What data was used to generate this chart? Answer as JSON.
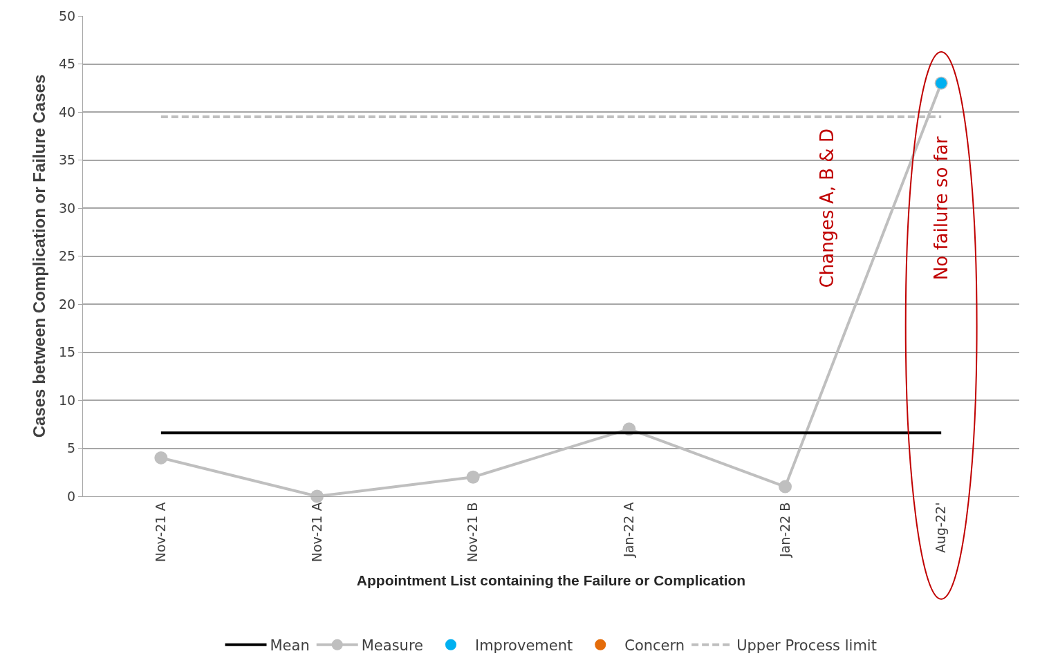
{
  "chart_data": {
    "type": "line",
    "xlabel": "Appointment List containing the Failure or Complication",
    "ylabel": "Cases between Complication or Failure Cases",
    "categories": [
      "Nov-21 A",
      "Nov-21 A",
      "Nov-21 B",
      "Jan-22 A",
      "Jan-22 B",
      "Aug-22'"
    ],
    "series": [
      {
        "name": "Mean",
        "color": "#000000",
        "marker": "none",
        "line_style": "solid",
        "values": [
          6.6,
          6.6,
          6.6,
          6.6,
          6.6,
          6.6
        ]
      },
      {
        "name": "Measure",
        "color": "#bfbfbf",
        "marker": "circle",
        "line_style": "solid",
        "values": [
          4,
          0,
          2,
          7,
          1,
          43
        ]
      },
      {
        "name": "Improvement",
        "type": "scatter",
        "color": "#00b0f0",
        "marker": "circle",
        "values": [
          null,
          null,
          null,
          null,
          null,
          43
        ]
      },
      {
        "name": "Concern",
        "type": "scatter",
        "color": "#e46c0a",
        "marker": "circle",
        "values": [
          null,
          null,
          null,
          null,
          null,
          null
        ]
      },
      {
        "name": "Upper Process limit",
        "color": "#bfbfbf",
        "marker": "none",
        "line_style": "dashed",
        "values": [
          39.5,
          39.5,
          39.5,
          39.5,
          39.5,
          39.5
        ]
      }
    ],
    "annotations": [
      "Changes A, B & D",
      "No failure so far"
    ],
    "ylim": [
      0,
      50
    ],
    "yticks": [
      0,
      5,
      10,
      15,
      20,
      25,
      30,
      35,
      40,
      45,
      50
    ],
    "grid": "y",
    "legend": "bottom"
  }
}
